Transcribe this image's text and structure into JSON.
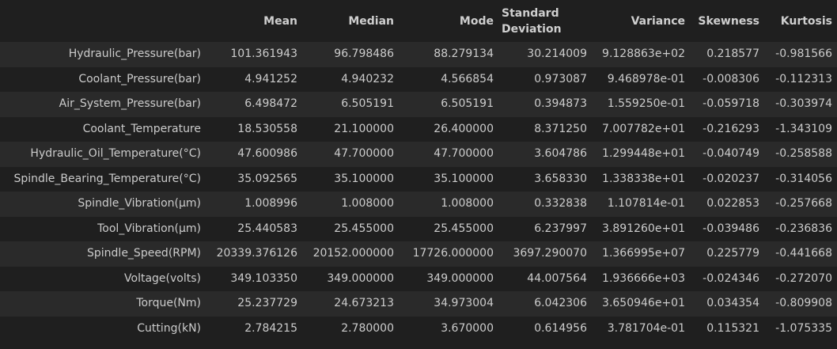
{
  "table": {
    "columns": [
      "",
      "Mean",
      "Median",
      "Mode",
      "Standard Deviation",
      "Variance",
      "Skewness",
      "Kurtosis"
    ],
    "rows": [
      [
        "Hydraulic_Pressure(bar)",
        "101.361943",
        "96.798486",
        "88.279134",
        "30.214009",
        "9.128863e+02",
        "0.218577",
        "-0.981566"
      ],
      [
        "Coolant_Pressure(bar)",
        "4.941252",
        "4.940232",
        "4.566854",
        "0.973087",
        "9.468978e-01",
        "-0.008306",
        "-0.112313"
      ],
      [
        "Air_System_Pressure(bar)",
        "6.498472",
        "6.505191",
        "6.505191",
        "0.394873",
        "1.559250e-01",
        "-0.059718",
        "-0.303974"
      ],
      [
        "Coolant_Temperature",
        "18.530558",
        "21.100000",
        "26.400000",
        "8.371250",
        "7.007782e+01",
        "-0.216293",
        "-1.343109"
      ],
      [
        "Hydraulic_Oil_Temperature(°C)",
        "47.600986",
        "47.700000",
        "47.700000",
        "3.604786",
        "1.299448e+01",
        "-0.040749",
        "-0.258588"
      ],
      [
        "Spindle_Bearing_Temperature(°C)",
        "35.092565",
        "35.100000",
        "35.100000",
        "3.658330",
        "1.338338e+01",
        "-0.020237",
        "-0.314056"
      ],
      [
        "Spindle_Vibration(µm)",
        "1.008996",
        "1.008000",
        "1.008000",
        "0.332838",
        "1.107814e-01",
        "0.022853",
        "-0.257668"
      ],
      [
        "Tool_Vibration(µm)",
        "25.440583",
        "25.455000",
        "25.455000",
        "6.237997",
        "3.891260e+01",
        "-0.039486",
        "-0.236836"
      ],
      [
        "Spindle_Speed(RPM)",
        "20339.376126",
        "20152.000000",
        "17726.000000",
        "3697.290070",
        "1.366995e+07",
        "0.225779",
        "-0.441668"
      ],
      [
        "Voltage(volts)",
        "349.103350",
        "349.000000",
        "349.000000",
        "44.007564",
        "1.936666e+03",
        "-0.024346",
        "-0.272070"
      ],
      [
        "Torque(Nm)",
        "25.237729",
        "24.673213",
        "34.973004",
        "6.042306",
        "3.650946e+01",
        "0.034354",
        "-0.809908"
      ],
      [
        "Cutting(kN)",
        "2.784215",
        "2.780000",
        "3.670000",
        "0.614956",
        "3.781704e-01",
        "0.115321",
        "-1.075335"
      ]
    ]
  }
}
